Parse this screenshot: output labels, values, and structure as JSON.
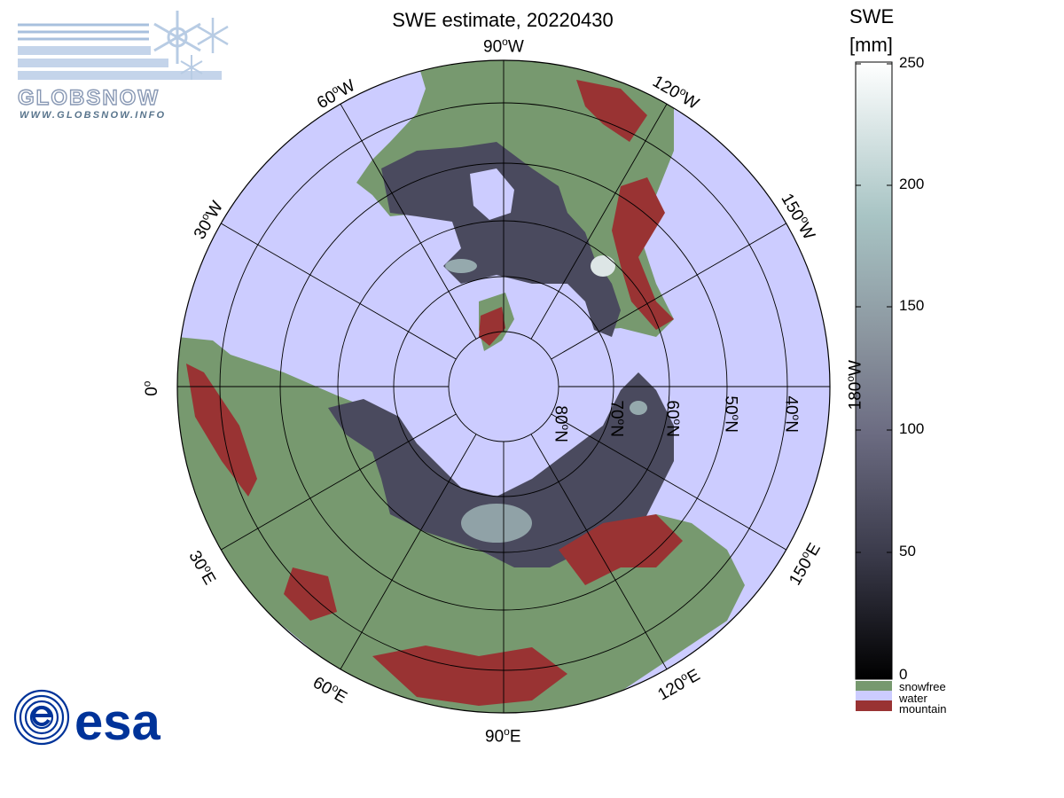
{
  "title": "SWE estimate, 20220430",
  "longitude_labels": [
    {
      "deg": "90",
      "hemi": "W"
    },
    {
      "deg": "120",
      "hemi": "W"
    },
    {
      "deg": "150",
      "hemi": "W"
    },
    {
      "deg": "180",
      "hemi": "W"
    },
    {
      "deg": "150",
      "hemi": "E"
    },
    {
      "deg": "120",
      "hemi": "E"
    },
    {
      "deg": "90",
      "hemi": "E"
    },
    {
      "deg": "60",
      "hemi": "E"
    },
    {
      "deg": "30",
      "hemi": "E"
    },
    {
      "deg": "0",
      "hemi": ""
    },
    {
      "deg": "30",
      "hemi": "W"
    },
    {
      "deg": "60",
      "hemi": "W"
    }
  ],
  "latitude_labels": [
    {
      "deg": "80",
      "hemi": "N"
    },
    {
      "deg": "70",
      "hemi": "N"
    },
    {
      "deg": "60",
      "hemi": "N"
    },
    {
      "deg": "50",
      "hemi": "N"
    },
    {
      "deg": "40",
      "hemi": "N"
    }
  ],
  "colorbar": {
    "title_line1": "SWE",
    "title_line2": "[mm]",
    "ticks": [
      "250",
      "200",
      "150",
      "100",
      "50",
      "0"
    ],
    "range": [
      0,
      250
    ],
    "gradient_colors": [
      "#000000",
      "#3a3a4a",
      "#6c6c82",
      "#8a949e",
      "#a8c4c4",
      "#ffffff"
    ],
    "categories": [
      {
        "label": "snowfree",
        "color": "#77996f"
      },
      {
        "label": "water",
        "color": "#ccccff"
      },
      {
        "label": "mountain",
        "color": "#993333"
      }
    ]
  },
  "map_colors": {
    "land": "#77996f",
    "water": "#ccccff",
    "mountain": "#993333",
    "snow": "#4a4a5e",
    "snow_light": "#a8c0c0"
  },
  "logos": {
    "globsnow_wordmark": "GLOBSNOW",
    "globsnow_url": "WWW.GLOBSNOW.INFO",
    "esa_wordmark": "esa"
  }
}
